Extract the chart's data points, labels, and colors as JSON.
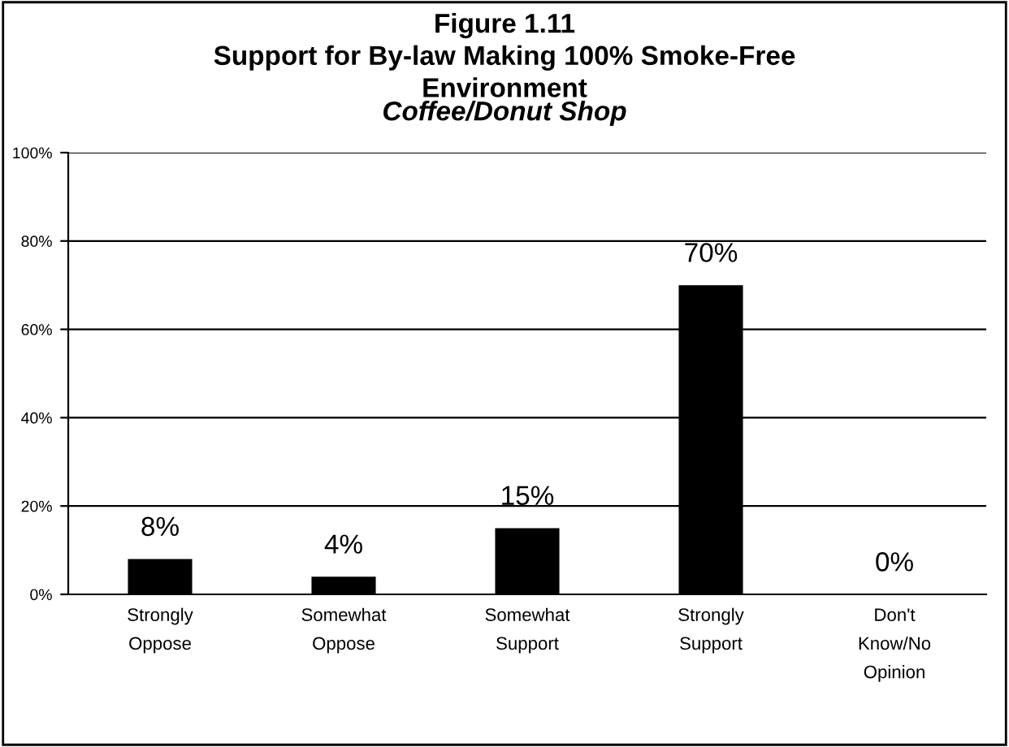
{
  "chart_data": {
    "type": "bar",
    "title": "Figure 1.11\nSupport for By-law Making 100% Smoke-Free\nEnvironment",
    "subtitle": "Coffee/Donut Shop",
    "categories": [
      "Strongly\nOppose",
      "Somewhat\nOppose",
      "Somewhat\nSupport",
      "Strongly\nSupport",
      "Don't\nKnow/No\nOpinion"
    ],
    "values": [
      8,
      4,
      15,
      70,
      0
    ],
    "value_labels": [
      "8%",
      "4%",
      "15%",
      "70%",
      "0%"
    ],
    "color": "#000000",
    "ylim": [
      0,
      100
    ],
    "yticks": [
      {
        "value": 0,
        "label": "0%"
      },
      {
        "value": 20,
        "label": "20%"
      },
      {
        "value": 40,
        "label": "40%"
      },
      {
        "value": 60,
        "label": "60%"
      },
      {
        "value": 80,
        "label": "80%"
      },
      {
        "value": 100,
        "label": "100%"
      }
    ],
    "grid": "y",
    "legend": false
  }
}
